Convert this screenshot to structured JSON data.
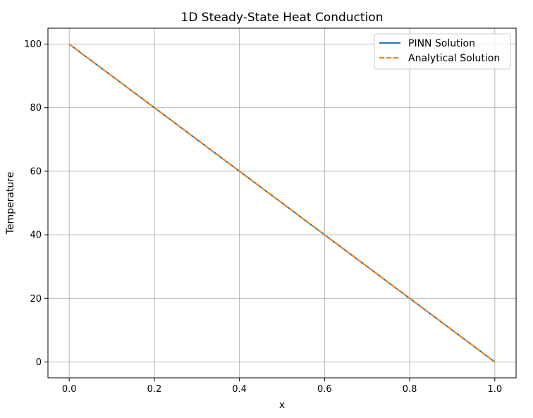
{
  "chart_data": {
    "type": "line",
    "title": "1D Steady-State Heat Conduction",
    "xlabel": "x",
    "ylabel": "Temperature",
    "xlim": [
      -0.05,
      1.05
    ],
    "ylim": [
      -5,
      105
    ],
    "xticks": [
      0.0,
      0.2,
      0.4,
      0.6,
      0.8,
      1.0
    ],
    "xtick_labels": [
      "0.0",
      "0.2",
      "0.4",
      "0.6",
      "0.8",
      "1.0"
    ],
    "yticks": [
      0,
      20,
      40,
      60,
      80,
      100
    ],
    "ytick_labels": [
      "0",
      "20",
      "40",
      "60",
      "80",
      "100"
    ],
    "grid": true,
    "legend_position": "top-right",
    "series": [
      {
        "name": "PINN Solution",
        "color": "#1f77b4",
        "style": "solid",
        "x": [
          0.0,
          0.2,
          0.4,
          0.6,
          0.8,
          1.0
        ],
        "y": [
          100,
          80,
          60,
          40,
          20,
          0
        ]
      },
      {
        "name": "Analytical Solution",
        "color": "#ff7f0e",
        "style": "dashed",
        "x": [
          0.0,
          0.2,
          0.4,
          0.6,
          0.8,
          1.0
        ],
        "y": [
          100,
          80,
          60,
          40,
          20,
          0
        ]
      }
    ]
  }
}
